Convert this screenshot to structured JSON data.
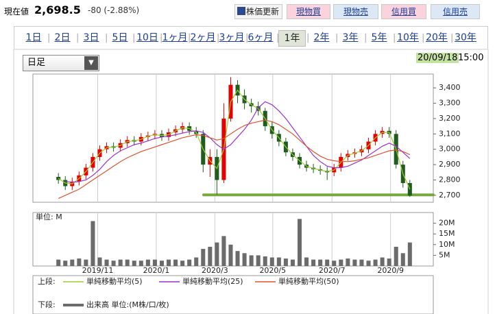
{
  "header": {
    "price_label": "現在値",
    "price": "2,698.5",
    "change": "-80 (-2.88%)",
    "buttons": [
      "株価更新",
      "現物買",
      "現物売",
      "信用買",
      "信用売"
    ]
  },
  "tabs": {
    "items": [
      "1日",
      "2日",
      "3日",
      "5日",
      "10日",
      "1ヶ月",
      "2ヶ月",
      "3ヶ月",
      "6ヶ月",
      "1年",
      "2年",
      "3年",
      "5年",
      "10年",
      "20年",
      "30年"
    ],
    "selected": 9
  },
  "controls": {
    "period": "日足",
    "date": "20/09/18",
    "time": "15:00"
  },
  "legend": {
    "upper": "上段:",
    "lower": "下段:"
  },
  "chart_data": [
    {
      "type": "candlestick",
      "up_color": "#e60000",
      "down_color": "#1f5c1f",
      "open": [
        2820,
        2800,
        2760,
        2790,
        2830,
        2880,
        2950,
        3000,
        3020,
        3010,
        3040,
        3060,
        3050,
        3080,
        3090,
        3100,
        3080,
        3110,
        3130,
        3150,
        3120,
        3100,
        2900,
        2950,
        2800,
        3200,
        3420,
        3350,
        3300,
        3280,
        3250,
        3150,
        3100,
        3050,
        2980,
        2950,
        2900,
        2880,
        2870,
        2860,
        2850,
        2880,
        2950,
        2970,
        2980,
        3000,
        3050,
        3100,
        3120,
        3100,
        2900,
        2780
      ],
      "high": [
        2845,
        2825,
        2815,
        2855,
        2905,
        2975,
        3025,
        3045,
        3045,
        3065,
        3085,
        3085,
        3105,
        3115,
        3125,
        3125,
        3135,
        3155,
        3175,
        3175,
        3145,
        3125,
        3000,
        3000,
        3300,
        3470,
        3450,
        3390,
        3330,
        3310,
        3270,
        3180,
        3125,
        3075,
        3005,
        2975,
        2925,
        2905,
        2895,
        2885,
        2905,
        2975,
        2995,
        3005,
        3025,
        3075,
        3125,
        3145,
        3145,
        3125,
        2925,
        2800
      ],
      "low": [
        2775,
        2735,
        2735,
        2765,
        2805,
        2855,
        2925,
        2975,
        2985,
        2985,
        3015,
        3025,
        3025,
        3055,
        3065,
        3055,
        3055,
        3085,
        3105,
        3095,
        3075,
        2850,
        2820,
        2705,
        2780,
        3180,
        3300,
        3260,
        3240,
        3220,
        3120,
        3070,
        3020,
        2955,
        2925,
        2875,
        2855,
        2845,
        2835,
        2800,
        2825,
        2855,
        2925,
        2945,
        2955,
        2975,
        3025,
        3075,
        3075,
        2875,
        2750,
        2690
      ],
      "close": [
        2800,
        2760,
        2790,
        2830,
        2880,
        2950,
        3000,
        3020,
        3010,
        3040,
        3060,
        3050,
        3080,
        3090,
        3100,
        3080,
        3110,
        3130,
        3150,
        3120,
        3100,
        2900,
        2950,
        2800,
        3200,
        3420,
        3350,
        3300,
        3280,
        3250,
        3150,
        3100,
        3050,
        2980,
        2950,
        2900,
        2880,
        2870,
        2860,
        2850,
        2880,
        2950,
        2970,
        2980,
        3000,
        3050,
        3100,
        3120,
        3100,
        2900,
        2780,
        2698.5
      ],
      "series": [
        {
          "name": "単純移動平均(5)",
          "color": "#9acd32",
          "values": [
            2810,
            2780,
            2775,
            2810,
            2855,
            2915,
            2975,
            3010,
            3015,
            3025,
            3050,
            3055,
            3065,
            3085,
            3095,
            3090,
            3095,
            3120,
            3140,
            3135,
            3110,
            3000,
            2925,
            2875,
            3000,
            3310,
            3385,
            3325,
            3290,
            3265,
            3200,
            3125,
            3075,
            3015,
            2965,
            2925,
            2890,
            2875,
            2865,
            2855,
            2865,
            2915,
            2960,
            2975,
            2990,
            3025,
            3075,
            3110,
            3110,
            3000,
            2840,
            2740
          ]
        },
        {
          "name": "単純移動平均(25)",
          "color": "#9932cc",
          "values": [
            null,
            2790,
            2785,
            2790,
            2800,
            2830,
            2870,
            2920,
            2960,
            2990,
            3010,
            3030,
            3040,
            3055,
            3070,
            3080,
            3085,
            3095,
            3105,
            3115,
            3120,
            3110,
            3075,
            3030,
            3000,
            3030,
            3080,
            3130,
            3190,
            3270,
            3310,
            3290,
            3250,
            3200,
            3140,
            3080,
            3020,
            2960,
            2920,
            2890,
            2880,
            2880,
            2890,
            2910,
            2930,
            2960,
            2990,
            3020,
            3040,
            3020,
            2980,
            2940
          ]
        },
        {
          "name": "単純移動平均(50)",
          "color": "#e0522d",
          "values": [
            2680,
            2700,
            2720,
            2740,
            2770,
            2800,
            2830,
            2860,
            2890,
            2920,
            2945,
            2965,
            2985,
            3000,
            3015,
            3030,
            3045,
            3060,
            3075,
            3085,
            3095,
            3090,
            3075,
            3060,
            3070,
            3100,
            3130,
            3155,
            3170,
            3180,
            3190,
            3180,
            3160,
            3130,
            3100,
            3060,
            3020,
            2985,
            2955,
            2935,
            2925,
            2920,
            2920,
            2925,
            2935,
            2945,
            2960,
            2975,
            2990,
            2995,
            2985,
            2965
          ]
        }
      ],
      "ylim": [
        2655,
        3490
      ],
      "yticks": [
        {
          "value": 2700,
          "label": "2,700"
        },
        {
          "value": 2800,
          "label": "2,800"
        },
        {
          "value": 2900,
          "label": "2,900"
        },
        {
          "value": 3000,
          "label": "3,000"
        },
        {
          "value": 3100,
          "label": "3,100"
        },
        {
          "value": 3200,
          "label": "3,200"
        },
        {
          "value": 3300,
          "label": "3,300"
        },
        {
          "value": 3400,
          "label": "3,400"
        }
      ],
      "xlim": [
        -3.7,
        54.4
      ],
      "xticks": [
        {
          "value": 5.7,
          "label": "2019/11"
        },
        {
          "value": 14.2,
          "label": "2020/1"
        },
        {
          "value": 22.7,
          "label": "2020/3"
        },
        {
          "value": 31.1,
          "label": "2020/5"
        },
        {
          "value": 39.7,
          "label": "2020/7"
        },
        {
          "value": 48.2,
          "label": "2020/9"
        }
      ],
      "hline": {
        "value": 2703,
        "color": "#76a83e"
      }
    },
    {
      "type": "bar",
      "name": "出来高 単位:(M株/口/枚)",
      "unit_label": "単位: M",
      "color": "#6b6b6b",
      "values": [
        3,
        2.5,
        3,
        3.5,
        3,
        21,
        4,
        3,
        2.5,
        3,
        3,
        2.5,
        2.5,
        3,
        3,
        2.5,
        3,
        3,
        2.5,
        3,
        4,
        8,
        9,
        11,
        14,
        10,
        7,
        6,
        5,
        5,
        4.5,
        4,
        4,
        3.5,
        3,
        22,
        4,
        3,
        3,
        3,
        2.5,
        3,
        3.5,
        3,
        3,
        2.5,
        3,
        4,
        3.5,
        9,
        6,
        11
      ],
      "ylim": [
        0,
        25
      ],
      "yticks": [
        {
          "value": 5,
          "label": "5M"
        },
        {
          "value": 10,
          "label": "10M"
        },
        {
          "value": 15,
          "label": "15M"
        },
        {
          "value": 20,
          "label": "20M"
        }
      ]
    }
  ]
}
